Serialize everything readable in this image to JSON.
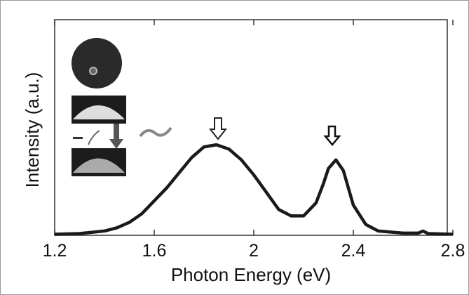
{
  "chart_data": {
    "type": "line",
    "xlabel": "Photon Energy (eV)",
    "ylabel": "Intensity (a.u.)",
    "xlim": [
      1.2,
      2.8
    ],
    "xticks": [
      1.2,
      1.6,
      2,
      2.4,
      2.8
    ],
    "ylim": [
      0,
      1
    ],
    "series": [
      {
        "color": "#1a1a1a",
        "x": [
          1.2,
          1.3,
          1.4,
          1.45,
          1.5,
          1.55,
          1.6,
          1.65,
          1.7,
          1.75,
          1.8,
          1.85,
          1.9,
          1.95,
          2.0,
          2.05,
          2.1,
          2.15,
          2.2,
          2.25,
          2.28,
          2.3,
          2.33,
          2.36,
          2.38,
          2.4,
          2.45,
          2.5,
          2.6,
          2.66,
          2.68,
          2.7,
          2.8
        ],
        "values": [
          0.005,
          0.008,
          0.02,
          0.035,
          0.06,
          0.1,
          0.16,
          0.22,
          0.29,
          0.36,
          0.41,
          0.42,
          0.4,
          0.35,
          0.28,
          0.2,
          0.12,
          0.09,
          0.09,
          0.15,
          0.24,
          0.31,
          0.35,
          0.3,
          0.22,
          0.14,
          0.05,
          0.02,
          0.01,
          0.01,
          0.02,
          0.008,
          0.005
        ]
      }
    ]
  }
}
